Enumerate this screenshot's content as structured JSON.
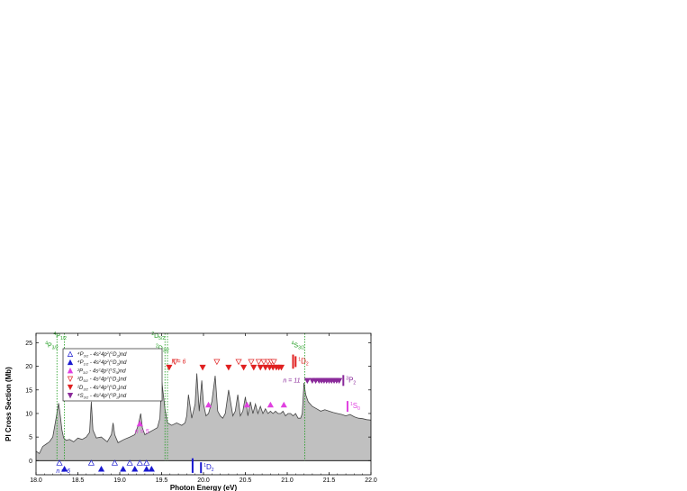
{
  "chart_data": {
    "type": "area",
    "xlabel": "Photon Energy (eV)",
    "ylabel": "PI Cross Section (Mb)",
    "xlim": [
      18.0,
      22.0
    ],
    "ylim": [
      -3,
      27
    ],
    "xticks": [
      18.0,
      18.5,
      19.0,
      19.5,
      20.0,
      20.5,
      21.0,
      21.5,
      22.0
    ],
    "xtick_labels": [
      "18.0",
      "18.5",
      "19.0",
      "19.5",
      "20.0",
      "20.5",
      "21.0",
      "21.5",
      "22.0"
    ],
    "yticks": [
      0,
      5,
      10,
      15,
      20,
      25
    ],
    "ytick_labels": [
      "0",
      "5",
      "10",
      "15",
      "20",
      "25"
    ],
    "grid": false,
    "legend_position": "top-left",
    "colors": {
      "fill": "#c0c0c0",
      "line": "#444444",
      "green": "#1a9a1a",
      "blue": "#1a1ad0",
      "magenta": "#e040e0",
      "red": "#e02020",
      "purple": "#8a2a9a"
    },
    "spectrum": {
      "x": [
        18.0,
        18.04,
        18.08,
        18.12,
        18.16,
        18.2,
        18.24,
        18.27,
        18.29,
        18.31,
        18.33,
        18.36,
        18.4,
        18.45,
        18.5,
        18.55,
        18.6,
        18.64,
        18.66,
        18.68,
        18.72,
        18.78,
        18.85,
        18.9,
        18.92,
        18.94,
        18.98,
        19.05,
        19.12,
        19.18,
        19.22,
        19.25,
        19.27,
        19.3,
        19.35,
        19.4,
        19.45,
        19.48,
        19.5,
        19.52,
        19.54,
        19.57,
        19.62,
        19.68,
        19.74,
        19.78,
        19.8,
        19.82,
        19.86,
        19.9,
        19.92,
        19.95,
        19.98,
        20.0,
        20.03,
        20.06,
        20.1,
        20.14,
        20.17,
        20.2,
        20.23,
        20.26,
        20.3,
        20.35,
        20.38,
        20.41,
        20.44,
        20.47,
        20.5,
        20.53,
        20.56,
        20.59,
        20.62,
        20.65,
        20.68,
        20.71,
        20.74,
        20.77,
        20.8,
        20.83,
        20.86,
        20.89,
        20.92,
        20.95,
        20.98,
        21.01,
        21.04,
        21.07,
        21.1,
        21.13,
        21.16,
        21.18,
        21.2,
        21.22,
        21.25,
        21.3,
        21.35,
        21.4,
        21.45,
        21.5,
        21.55,
        21.6,
        21.65,
        21.7,
        21.75,
        21.8,
        21.85,
        21.9,
        21.95,
        22.0
      ],
      "y": [
        2.0,
        1.5,
        3.0,
        3.5,
        4.0,
        5.0,
        9.0,
        12.2,
        9.5,
        6.5,
        4.8,
        4.3,
        4.5,
        4.0,
        4.8,
        4.5,
        5.0,
        6.0,
        12.5,
        6.5,
        4.8,
        5.0,
        4.0,
        5.5,
        8.0,
        5.5,
        3.8,
        4.5,
        5.0,
        5.5,
        7.5,
        10.0,
        7.0,
        5.5,
        6.0,
        6.5,
        7.0,
        9.0,
        17.0,
        14.0,
        11.0,
        8.0,
        7.5,
        8.0,
        7.5,
        8.0,
        9.5,
        14.0,
        9.0,
        12.0,
        18.5,
        10.5,
        17.0,
        12.0,
        9.5,
        10.0,
        12.5,
        18.0,
        10.5,
        9.5,
        9.0,
        10.0,
        15.0,
        9.5,
        10.5,
        14.0,
        9.5,
        10.5,
        13.5,
        9.5,
        12.5,
        10.0,
        12.0,
        10.0,
        11.5,
        10.0,
        11.0,
        10.0,
        10.5,
        10.0,
        10.5,
        10.0,
        10.0,
        10.5,
        9.5,
        10.0,
        10.0,
        9.5,
        10.0,
        9.0,
        9.0,
        10.0,
        16.5,
        14.0,
        12.5,
        11.5,
        11.0,
        10.5,
        10.8,
        10.5,
        10.2,
        10.0,
        9.8,
        9.5,
        9.8,
        9.3,
        9.0,
        8.9,
        8.7,
        8.6
      ]
    },
    "thresholds": [
      {
        "x": 18.25,
        "label": "P",
        "sup": "4",
        "sub": "3/2",
        "color": "#1a9a1a",
        "label_x": 18.11,
        "label_y": 24.0
      },
      {
        "x": 18.34,
        "label": "P",
        "sup": "4",
        "sub": "1/2",
        "color": "#1a9a1a",
        "label_x": 18.21,
        "label_y": 26.0
      },
      {
        "x": 19.54,
        "label": "D",
        "sup": "2",
        "sub": "3/2",
        "color": "#1a9a1a",
        "label_x": 19.43,
        "label_y": 23.5
      },
      {
        "x": 19.57,
        "label": "D",
        "sup": "2",
        "sub": "5/2",
        "color": "#1a9a1a",
        "label_x": 19.38,
        "label_y": 26.0
      },
      {
        "x": 21.21,
        "label": "S",
        "sup": "4",
        "sub": "3/2",
        "color": "#1a9a1a",
        "label_x": 21.05,
        "label_y": 24.0
      }
    ],
    "ion_levels": [
      {
        "x": 21.1,
        "y": 21.0,
        "label": "D",
        "sup": "1",
        "sub": "2",
        "color": "#e02020"
      },
      {
        "x": 21.67,
        "y": 17.0,
        "label": "P",
        "sup": "3",
        "sub": "2",
        "color": "#8a2a9a"
      },
      {
        "x": 21.72,
        "y": 11.5,
        "label": "S",
        "sup": "1",
        "sub": "0",
        "color": "#e040e0"
      },
      {
        "x": 19.97,
        "y": -1.5,
        "label": "D",
        "sup": "1",
        "sub": "2",
        "color": "#1a1ad0"
      }
    ],
    "series": [
      {
        "name": "4P3/2 - 4s²4p²(¹D₂)nd",
        "legend": [
          "⁴P",
          "3/2",
          " - 4s",
          "2",
          "4p",
          "2",
          "(",
          "1",
          "D",
          "2",
          ")nd"
        ],
        "marker": "triangle-up-open",
        "color": "#1a1ad0",
        "x": [
          18.28,
          18.66,
          18.94,
          19.12,
          19.24,
          19.32
        ],
        "y": [
          -0.5,
          -0.5,
          -0.5,
          -0.5,
          -0.5,
          -0.5
        ]
      },
      {
        "name": "4P1/2 - 4s²4p²(¹D₂)nd",
        "legend": [
          "⁴P",
          "1/2",
          " - 4s",
          "2",
          "4p",
          "2",
          "(",
          "1",
          "D",
          "2",
          ")nd"
        ],
        "marker": "triangle-up-filled",
        "color": "#1a1ad0",
        "x": [
          18.34,
          18.78,
          19.04,
          19.18,
          19.32,
          19.38
        ],
        "y": [
          -1.8,
          -1.8,
          -1.8,
          -1.8,
          -1.8,
          -1.8
        ]
      },
      {
        "name": "2P3/2 - 4s²4p²(¹S₀)nd",
        "legend": [
          "²P",
          "3/2",
          " - 4s",
          "2",
          "4p",
          "2",
          "(",
          "1",
          "S",
          "0",
          ")nd"
        ],
        "marker": "triangle-up-filled",
        "color": "#e040e0",
        "x": [
          19.24,
          20.06,
          20.52,
          20.8,
          20.96
        ],
        "y": [
          7.8,
          11.8,
          11.8,
          11.8,
          11.8
        ]
      },
      {
        "name": "2D5/2 - 4s²4p²(¹D₂)nd",
        "legend": [
          "²D",
          "5/2",
          " - 4s",
          "2",
          "4p",
          "2",
          "(",
          "1",
          "D",
          "2",
          ")nd"
        ],
        "marker": "triangle-down-open",
        "color": "#e02020",
        "x": [
          19.66,
          20.16,
          20.42,
          20.57,
          20.66,
          20.72,
          20.77,
          20.81,
          20.84
        ],
        "y": [
          21.0,
          21.0,
          21.0,
          21.0,
          21.0,
          21.0,
          21.0,
          21.0,
          21.0
        ]
      },
      {
        "name": "2D3/2 - 4s²4p²(¹D₂)nd",
        "legend": [
          "²D",
          "3/2",
          " - 4s",
          "2",
          "4p",
          "2",
          "(",
          "1",
          "D",
          "2",
          ")nd"
        ],
        "marker": "triangle-down-filled",
        "color": "#e02020",
        "x": [
          19.59,
          19.99,
          20.3,
          20.48,
          20.6,
          20.68,
          20.74,
          20.79,
          20.83,
          20.87,
          20.9,
          20.93
        ],
        "y": [
          19.8,
          19.8,
          19.8,
          19.8,
          19.8,
          19.8,
          19.8,
          19.8,
          19.8,
          19.8,
          19.8,
          19.8
        ]
      },
      {
        "name": "4S3/2 - 4s²4p²(³P₂)nd",
        "legend": [
          "⁴S",
          "3/2",
          " - 4s",
          "2",
          "4p",
          "2",
          "(",
          "3",
          "P",
          "2",
          ")nd"
        ],
        "marker": "triangle-down-filled",
        "color": "#8a2a9a",
        "x": [
          21.24,
          21.3,
          21.34,
          21.38,
          21.41,
          21.44,
          21.47,
          21.5,
          21.53,
          21.56,
          21.59,
          21.62
        ],
        "y": [
          17.0,
          17.0,
          17.0,
          17.0,
          17.0,
          17.0,
          17.0,
          17.0,
          17.0,
          17.0,
          17.0,
          17.0
        ]
      }
    ],
    "annotations": [
      {
        "text": "n = 6",
        "x": 19.62,
        "y": 20.6,
        "color": "#e02020"
      },
      {
        "text": "n = 5",
        "x": 19.18,
        "y": 5.8,
        "color": "#e040e0"
      },
      {
        "text": "n = 11",
        "x": 20.95,
        "y": 16.6,
        "color": "#8a2a9a"
      },
      {
        "text": "n = 6",
        "x": 18.24,
        "y": -2.6,
        "color": "#1a1ad0"
      }
    ]
  }
}
